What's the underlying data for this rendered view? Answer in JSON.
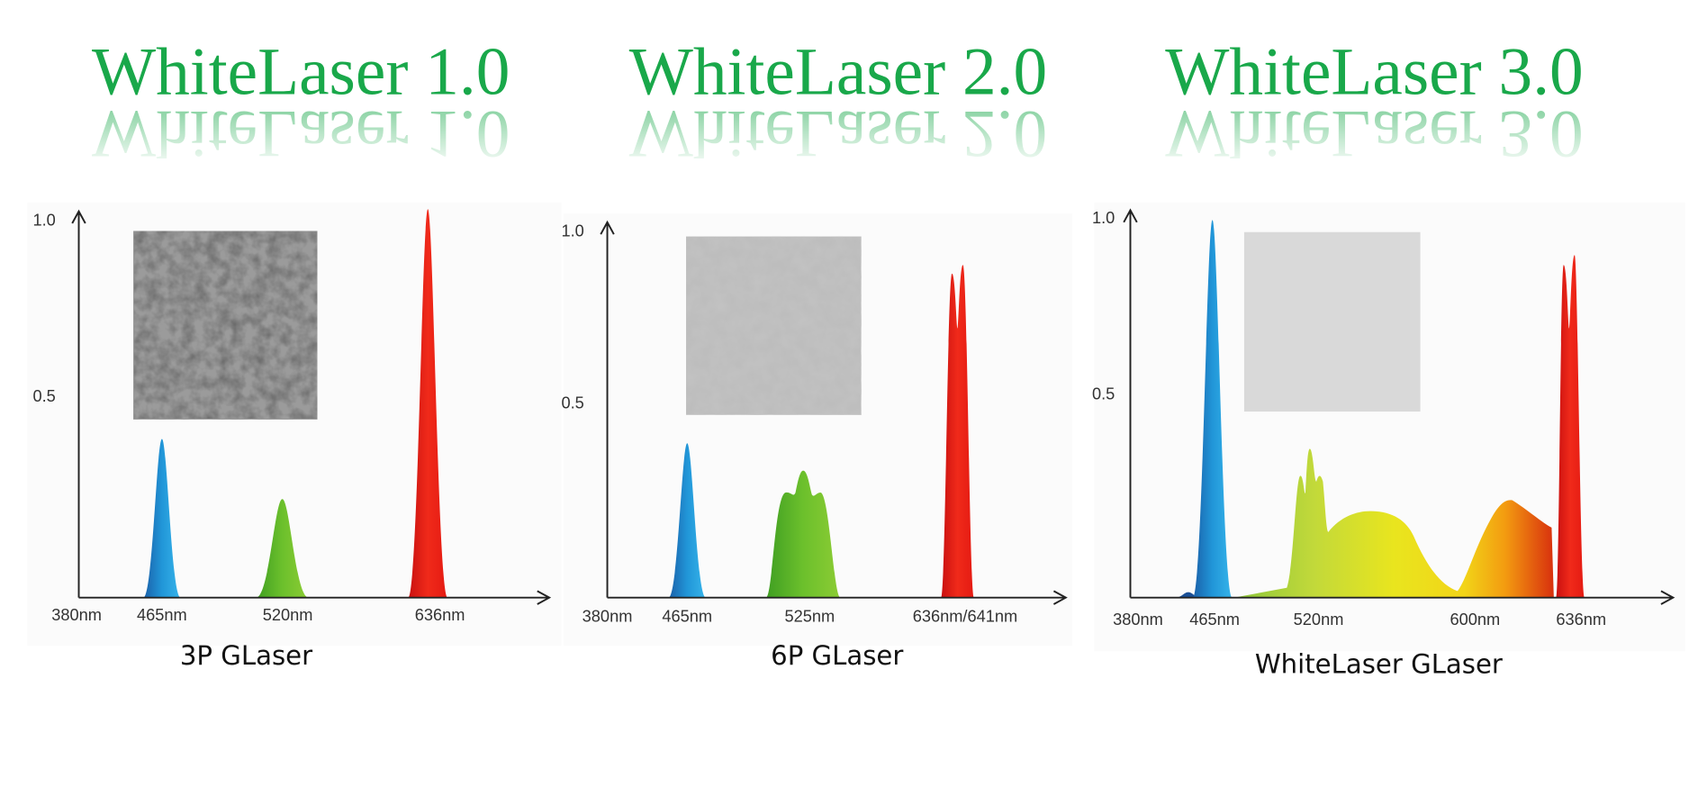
{
  "panels": [
    {
      "title": "WhiteLaser 1.0",
      "yticks": [
        "1.0",
        "0.5"
      ],
      "xticks": [
        "380nm",
        "465nm",
        "520nm",
        "636nm"
      ],
      "caption": "3P GLaser"
    },
    {
      "title": "WhiteLaser 2.0",
      "yticks": [
        "1.0",
        "0.5"
      ],
      "xticks": [
        "380nm",
        "465nm",
        "525nm",
        "636nm/641nm"
      ],
      "caption": "6P GLaser"
    },
    {
      "title": "WhiteLaser 3.0",
      "yticks": [
        "1.0",
        "0.5"
      ],
      "xticks": [
        "380nm",
        "465nm",
        "520nm",
        "600nm",
        "636nm"
      ],
      "caption": "WhiteLaser GLaser"
    }
  ]
}
